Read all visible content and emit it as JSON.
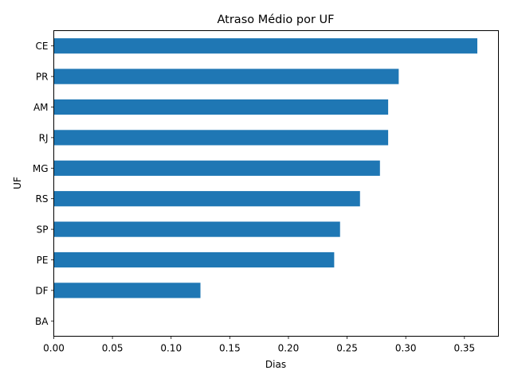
{
  "chart_data": {
    "type": "bar",
    "orientation": "horizontal",
    "title": "Atraso Médio por UF",
    "xlabel": "Dias",
    "ylabel": "UF",
    "categories": [
      "CE",
      "PR",
      "AM",
      "RJ",
      "MG",
      "RS",
      "SP",
      "PE",
      "DF",
      "BA"
    ],
    "values": [
      0.361,
      0.294,
      0.285,
      0.285,
      0.278,
      0.261,
      0.244,
      0.239,
      0.125,
      0.0
    ],
    "xlim": [
      0.0,
      0.379
    ],
    "xticks": [
      "0.00",
      "0.05",
      "0.10",
      "0.15",
      "0.20",
      "0.25",
      "0.30",
      "0.35"
    ],
    "xtick_values": [
      0.0,
      0.05,
      0.1,
      0.15,
      0.2,
      0.25,
      0.3,
      0.35
    ],
    "bar_color": "#1f77b4",
    "grid": false,
    "legend": "none"
  }
}
